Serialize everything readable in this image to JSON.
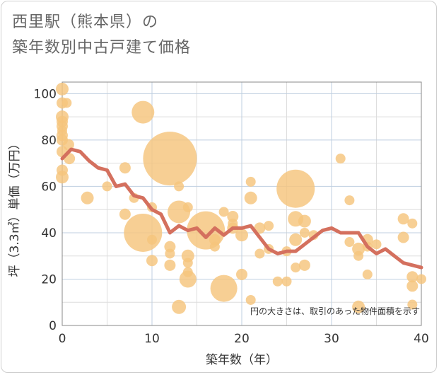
{
  "title_line1": "西里駅（熊本県）の",
  "title_line2": "築年数別中古戸建て価格",
  "note": "円の大きさは、取引のあった物件面積を示す",
  "colors": {
    "bubble": "#f5c57d",
    "line": "#d4705e",
    "grid": "#dddddd",
    "gridMajor": "#bfcfe0",
    "axis": "#888888"
  },
  "chart_data": {
    "type": "scatter",
    "xlabel": "築年数（年）",
    "ylabel": "坪（3.3㎡）単価（万円）",
    "xlim": [
      0,
      40
    ],
    "ylim": [
      0,
      105
    ],
    "xticks": [
      0,
      10,
      20,
      30,
      40
    ],
    "yticks": [
      0,
      20,
      40,
      60,
      80,
      100
    ],
    "grid": true,
    "bubbles": [
      {
        "x": 0,
        "y": 102,
        "r": 9
      },
      {
        "x": 0,
        "y": 96,
        "r": 8
      },
      {
        "x": 0,
        "y": 90,
        "r": 9
      },
      {
        "x": 0,
        "y": 88,
        "r": 8
      },
      {
        "x": 0,
        "y": 86,
        "r": 8
      },
      {
        "x": 0,
        "y": 84,
        "r": 7
      },
      {
        "x": 0,
        "y": 82,
        "r": 8
      },
      {
        "x": 0,
        "y": 80,
        "r": 8
      },
      {
        "x": 0,
        "y": 75,
        "r": 8
      },
      {
        "x": 0,
        "y": 67,
        "r": 8
      },
      {
        "x": 0,
        "y": 64,
        "r": 9
      },
      {
        "x": 0.5,
        "y": 96,
        "r": 7
      },
      {
        "x": 0.7,
        "y": 78,
        "r": 8
      },
      {
        "x": 0.8,
        "y": 72,
        "r": 8
      },
      {
        "x": 2.8,
        "y": 55,
        "r": 9
      },
      {
        "x": 5,
        "y": 60,
        "r": 7
      },
      {
        "x": 7,
        "y": 68,
        "r": 8
      },
      {
        "x": 7,
        "y": 48,
        "r": 8
      },
      {
        "x": 8,
        "y": 55,
        "r": 7
      },
      {
        "x": 9,
        "y": 92,
        "r": 16
      },
      {
        "x": 9,
        "y": 40,
        "r": 27
      },
      {
        "x": 10,
        "y": 51,
        "r": 7
      },
      {
        "x": 10,
        "y": 37,
        "r": 7
      },
      {
        "x": 10,
        "y": 28,
        "r": 8
      },
      {
        "x": 12,
        "y": 72,
        "r": 38
      },
      {
        "x": 12,
        "y": 34,
        "r": 8
      },
      {
        "x": 12,
        "y": 31,
        "r": 7
      },
      {
        "x": 12,
        "y": 26,
        "r": 8
      },
      {
        "x": 13,
        "y": 60,
        "r": 7
      },
      {
        "x": 13,
        "y": 49,
        "r": 16
      },
      {
        "x": 13,
        "y": 8,
        "r": 10
      },
      {
        "x": 14,
        "y": 51,
        "r": 7
      },
      {
        "x": 14,
        "y": 30,
        "r": 9
      },
      {
        "x": 14,
        "y": 27,
        "r": 7
      },
      {
        "x": 14,
        "y": 23,
        "r": 7
      },
      {
        "x": 14,
        "y": 20,
        "r": 12
      },
      {
        "x": 16,
        "y": 41,
        "r": 27
      },
      {
        "x": 17,
        "y": 37,
        "r": 8
      },
      {
        "x": 17,
        "y": 34,
        "r": 7
      },
      {
        "x": 18,
        "y": 49,
        "r": 7
      },
      {
        "x": 18,
        "y": 16,
        "r": 19
      },
      {
        "x": 19,
        "y": 47,
        "r": 8
      },
      {
        "x": 19,
        "y": 44,
        "r": 7
      },
      {
        "x": 19,
        "y": 42,
        "r": 8
      },
      {
        "x": 20,
        "y": 39,
        "r": 9
      },
      {
        "x": 20,
        "y": 22,
        "r": 8
      },
      {
        "x": 21,
        "y": 62,
        "r": 7
      },
      {
        "x": 21,
        "y": 55,
        "r": 9
      },
      {
        "x": 21,
        "y": 11,
        "r": 7
      },
      {
        "x": 22,
        "y": 42,
        "r": 8
      },
      {
        "x": 22,
        "y": 31,
        "r": 7
      },
      {
        "x": 23,
        "y": 43,
        "r": 7
      },
      {
        "x": 23,
        "y": 33,
        "r": 7
      },
      {
        "x": 24,
        "y": 19,
        "r": 7
      },
      {
        "x": 25,
        "y": 32,
        "r": 7
      },
      {
        "x": 25,
        "y": 19,
        "r": 7
      },
      {
        "x": 26,
        "y": 59,
        "r": 27
      },
      {
        "x": 26,
        "y": 46,
        "r": 11
      },
      {
        "x": 26,
        "y": 37,
        "r": 9
      },
      {
        "x": 26,
        "y": 25,
        "r": 7
      },
      {
        "x": 27,
        "y": 45,
        "r": 9
      },
      {
        "x": 27,
        "y": 40,
        "r": 7
      },
      {
        "x": 27,
        "y": 26,
        "r": 8
      },
      {
        "x": 28,
        "y": 39,
        "r": 7
      },
      {
        "x": 31,
        "y": 72,
        "r": 7
      },
      {
        "x": 32,
        "y": 54,
        "r": 7
      },
      {
        "x": 32,
        "y": 36,
        "r": 7
      },
      {
        "x": 33,
        "y": 33,
        "r": 9
      },
      {
        "x": 33,
        "y": 30,
        "r": 7
      },
      {
        "x": 33,
        "y": 8,
        "r": 9
      },
      {
        "x": 34,
        "y": 37,
        "r": 8
      },
      {
        "x": 34,
        "y": 34,
        "r": 7
      },
      {
        "x": 34,
        "y": 22,
        "r": 7
      },
      {
        "x": 35,
        "y": 35,
        "r": 7
      },
      {
        "x": 38,
        "y": 46,
        "r": 8
      },
      {
        "x": 38,
        "y": 38,
        "r": 8
      },
      {
        "x": 39,
        "y": 44,
        "r": 7
      },
      {
        "x": 39,
        "y": 21,
        "r": 8
      },
      {
        "x": 39,
        "y": 17,
        "r": 8
      },
      {
        "x": 39,
        "y": 9,
        "r": 7
      },
      {
        "x": 40,
        "y": 20,
        "r": 7
      }
    ],
    "trend": {
      "x": [
        0,
        1,
        2,
        3,
        4,
        5,
        6,
        7,
        8,
        9,
        10,
        11,
        12,
        13,
        14,
        15,
        16,
        17,
        18,
        19,
        20,
        21,
        22,
        23,
        24,
        25,
        26,
        27,
        28,
        29,
        30,
        31,
        32,
        33,
        34,
        35,
        36,
        37,
        38,
        39,
        40
      ],
      "y": [
        72,
        76,
        75,
        71,
        68,
        67,
        60,
        61,
        56,
        55,
        50,
        48,
        40,
        43,
        41,
        42,
        38,
        42,
        39,
        42,
        42,
        43,
        38,
        33,
        31,
        32,
        32,
        35,
        38,
        41,
        42,
        40,
        40,
        40,
        34,
        31,
        33,
        30,
        27,
        26,
        25
      ]
    }
  }
}
